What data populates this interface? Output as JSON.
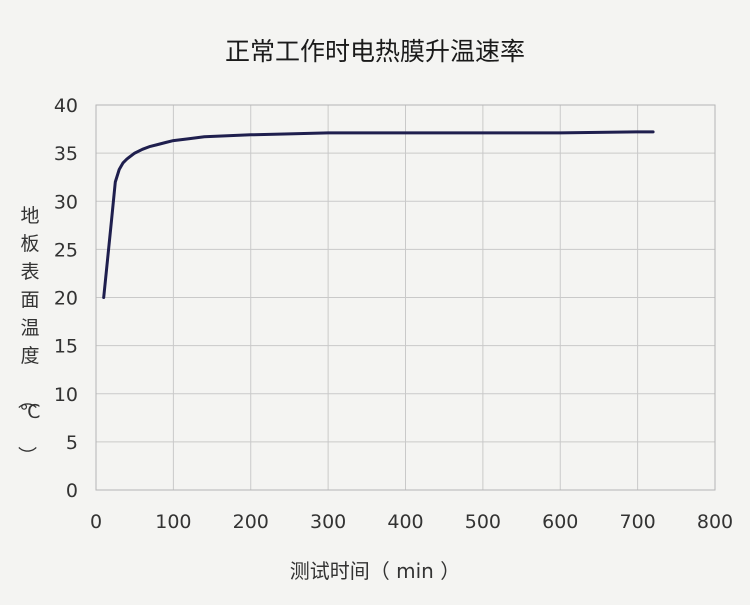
{
  "chart_data": {
    "type": "line",
    "title": "正常工作时电热膜升温速率",
    "xlabel": "测试时间（ min ）",
    "ylabel": "地板表面温度（℃）",
    "xlim": [
      0,
      800
    ],
    "ylim": [
      0,
      40
    ],
    "x_ticks": [
      "0",
      "100",
      "200",
      "300",
      "400",
      "500",
      "600",
      "700",
      "800"
    ],
    "y_ticks": [
      "0",
      "5",
      "10",
      "15",
      "20",
      "25",
      "30",
      "35",
      "40"
    ],
    "grid": true,
    "series": [
      {
        "color": "#1f1f4e",
        "x": [
          10,
          15,
          20,
          25,
          30,
          35,
          40,
          50,
          60,
          70,
          80,
          90,
          100,
          120,
          140,
          200,
          250,
          300,
          400,
          500,
          600,
          700,
          720
        ],
        "y": [
          20,
          24,
          28,
          32,
          33.3,
          34,
          34.4,
          35,
          35.4,
          35.7,
          35.9,
          36.1,
          36.3,
          36.5,
          36.7,
          36.9,
          37.0,
          37.1,
          37.1,
          37.1,
          37.1,
          37.2,
          37.2
        ]
      }
    ]
  }
}
